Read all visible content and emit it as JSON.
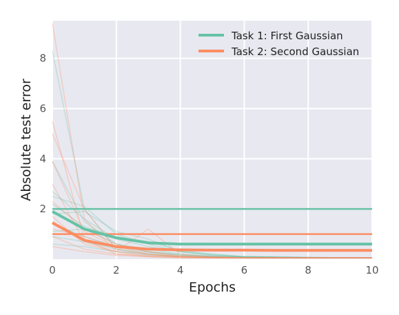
{
  "chart_data": {
    "type": "line",
    "title": "",
    "xlabel": "Epochs",
    "ylabel": "Absolute test error",
    "xlim": [
      0,
      10
    ],
    "ylim": [
      0,
      9.5
    ],
    "xticks": [
      0,
      2,
      4,
      6,
      8,
      10
    ],
    "yticks": [
      2,
      4,
      6,
      8
    ],
    "grid": true,
    "background": "#e8e8f0",
    "legend_position": "top-right",
    "x": [
      0,
      1,
      2,
      3,
      4,
      5,
      6,
      7,
      8,
      9,
      10
    ],
    "series": [
      {
        "name": "Task 1: First Gaussian",
        "color": "#66c2a5",
        "values": [
          1.9,
          1.2,
          0.85,
          0.65,
          0.6,
          0.6,
          0.6,
          0.6,
          0.6,
          0.6,
          0.6
        ],
        "reference_level": 2.0
      },
      {
        "name": "Task 2: Second Gaussian",
        "color": "#fc8d62",
        "values": [
          1.45,
          0.75,
          0.5,
          0.4,
          0.37,
          0.36,
          0.36,
          0.35,
          0.35,
          0.35,
          0.35
        ],
        "reference_level": 1.0
      }
    ],
    "individual_runs": [
      {
        "color": "#66c2a5",
        "values": [
          8.3,
          2.0,
          0.4,
          0.15,
          0.1,
          0.08,
          0.06,
          0.05,
          0.05,
          0.05,
          0.05
        ]
      },
      {
        "color": "#66c2a5",
        "values": [
          3.9,
          1.5,
          0.6,
          0.3,
          0.15,
          0.1,
          0.08,
          0.07,
          0.06,
          0.05,
          0.05
        ]
      },
      {
        "color": "#66c2a5",
        "values": [
          2.7,
          1.6,
          0.8,
          0.5,
          0.3,
          0.2,
          0.1,
          0.08,
          0.06,
          0.05,
          0.05
        ]
      },
      {
        "color": "#66c2a5",
        "values": [
          2.5,
          2.1,
          1.0,
          0.6,
          0.3,
          0.15,
          0.1,
          0.08,
          0.06,
          0.05,
          0.05
        ]
      },
      {
        "color": "#66c2a5",
        "values": [
          2.2,
          1.3,
          0.9,
          0.7,
          0.35,
          0.2,
          0.1,
          0.08,
          0.07,
          0.06,
          0.05
        ]
      },
      {
        "color": "#66c2a5",
        "values": [
          1.8,
          1.9,
          1.1,
          0.8,
          0.3,
          0.15,
          0.1,
          0.1,
          0.08,
          0.06,
          0.05
        ]
      },
      {
        "color": "#66c2a5",
        "values": [
          1.4,
          0.9,
          0.5,
          0.3,
          0.2,
          0.12,
          0.1,
          0.08,
          0.06,
          0.05,
          0.05
        ]
      },
      {
        "color": "#66c2a5",
        "values": [
          1.1,
          1.2,
          0.6,
          0.4,
          0.2,
          0.1,
          0.08,
          0.07,
          0.06,
          0.05,
          0.05
        ]
      },
      {
        "color": "#66c2a5",
        "values": [
          0.9,
          0.7,
          0.4,
          0.25,
          0.15,
          0.1,
          0.08,
          0.06,
          0.05,
          0.05,
          0.05
        ]
      },
      {
        "color": "#66c2a5",
        "values": [
          0.6,
          0.5,
          0.3,
          0.2,
          0.1,
          0.08,
          0.06,
          0.05,
          0.05,
          0.05,
          0.05
        ]
      },
      {
        "color": "#fc8d62",
        "values": [
          9.4,
          1.6,
          0.3,
          0.1,
          0.06,
          0.05,
          0.05,
          0.05,
          0.05,
          0.05,
          0.05
        ]
      },
      {
        "color": "#fc8d62",
        "values": [
          5.5,
          0.8,
          0.2,
          0.1,
          0.06,
          0.05,
          0.05,
          0.05,
          0.05,
          0.05,
          0.05
        ]
      },
      {
        "color": "#fc8d62",
        "values": [
          5.0,
          2.0,
          0.4,
          0.2,
          0.1,
          0.06,
          0.05,
          0.05,
          0.05,
          0.05,
          0.05
        ]
      },
      {
        "color": "#fc8d62",
        "values": [
          3.9,
          1.1,
          0.5,
          0.3,
          0.1,
          0.08,
          0.06,
          0.05,
          0.05,
          0.05,
          0.05
        ]
      },
      {
        "color": "#fc8d62",
        "values": [
          3.0,
          0.7,
          0.3,
          1.2,
          0.2,
          0.1,
          0.06,
          0.05,
          0.05,
          0.05,
          0.05
        ]
      },
      {
        "color": "#fc8d62",
        "values": [
          2.3,
          1.2,
          0.6,
          0.3,
          0.15,
          0.08,
          0.06,
          0.05,
          0.05,
          0.05,
          0.05
        ]
      },
      {
        "color": "#fc8d62",
        "values": [
          1.7,
          0.6,
          0.3,
          0.2,
          0.1,
          0.06,
          0.05,
          0.05,
          0.05,
          0.05,
          0.05
        ]
      },
      {
        "color": "#fc8d62",
        "values": [
          1.2,
          0.9,
          0.5,
          0.2,
          0.1,
          0.07,
          0.06,
          0.05,
          0.05,
          0.05,
          0.05
        ]
      },
      {
        "color": "#fc8d62",
        "values": [
          0.9,
          0.4,
          0.2,
          0.15,
          0.1,
          0.07,
          0.06,
          0.05,
          0.05,
          0.05,
          0.05
        ]
      },
      {
        "color": "#fc8d62",
        "values": [
          0.5,
          0.3,
          0.15,
          0.1,
          0.07,
          0.05,
          0.05,
          0.05,
          0.05,
          0.05,
          0.05
        ]
      }
    ]
  }
}
